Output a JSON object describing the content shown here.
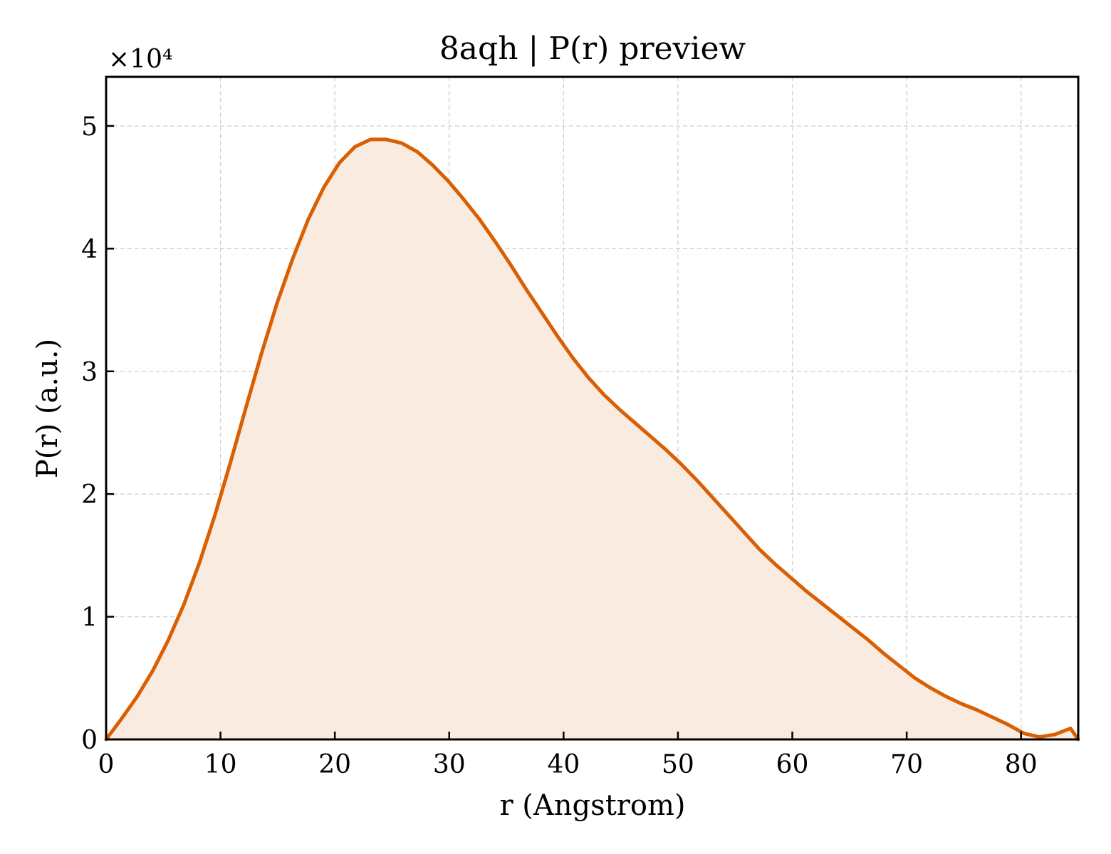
{
  "chart_data": {
    "type": "area",
    "title": "8aqh | P(r) preview",
    "xlabel": "r (Angstrom)",
    "ylabel": "P(r) (a.u.)",
    "y_multiplier": "×10⁴",
    "xlim": [
      0,
      85
    ],
    "ylim": [
      0,
      54000
    ],
    "xticks": [
      0,
      10,
      20,
      30,
      40,
      50,
      60,
      70,
      80
    ],
    "yticks": [
      0,
      10000,
      20000,
      30000,
      40000,
      50000
    ],
    "ytick_labels": [
      "0",
      "1",
      "2",
      "3",
      "4",
      "5"
    ],
    "grid": true,
    "legend": "none",
    "line_color": "#d95f02",
    "fill_color": "#f9ebe0",
    "series": [
      {
        "x": [
          0,
          1.36,
          2.72,
          4.08,
          5.44,
          6.8,
          8.16,
          9.52,
          10.88,
          12.24,
          13.6,
          14.96,
          16.32,
          17.68,
          19.04,
          20.4,
          21.76,
          23.12,
          24.48,
          25.84,
          27.2,
          28.56,
          29.92,
          31.28,
          32.64,
          34.0,
          35.36,
          36.72,
          38.08,
          39.44,
          40.8,
          42.16,
          43.52,
          44.88,
          46.24,
          47.6,
          48.96,
          50.32,
          51.68,
          53.04,
          54.4,
          55.76,
          57.12,
          58.48,
          59.84,
          61.2,
          62.56,
          63.92,
          65.28,
          66.64,
          68.0,
          69.36,
          70.72,
          72.08,
          73.44,
          74.8,
          76.16,
          77.52,
          78.88,
          80.24,
          81.6,
          82.96,
          84.32,
          85.0
        ],
        "y": [
          0,
          1700,
          3500,
          5600,
          8100,
          11000,
          14400,
          18300,
          22600,
          27100,
          31500,
          35600,
          39200,
          42400,
          45000,
          47000,
          48300,
          48900,
          48900,
          48600,
          47900,
          46800,
          45500,
          44000,
          42400,
          40600,
          38700,
          36700,
          34800,
          32900,
          31100,
          29500,
          28100,
          26900,
          25800,
          24700,
          23600,
          22400,
          21100,
          19700,
          18300,
          16900,
          15500,
          14300,
          13200,
          12100,
          11100,
          10100,
          9100,
          8100,
          7000,
          6000,
          5000,
          4200,
          3500,
          2900,
          2400,
          1800,
          1200,
          500,
          200,
          400,
          900,
          0
        ]
      }
    ]
  }
}
